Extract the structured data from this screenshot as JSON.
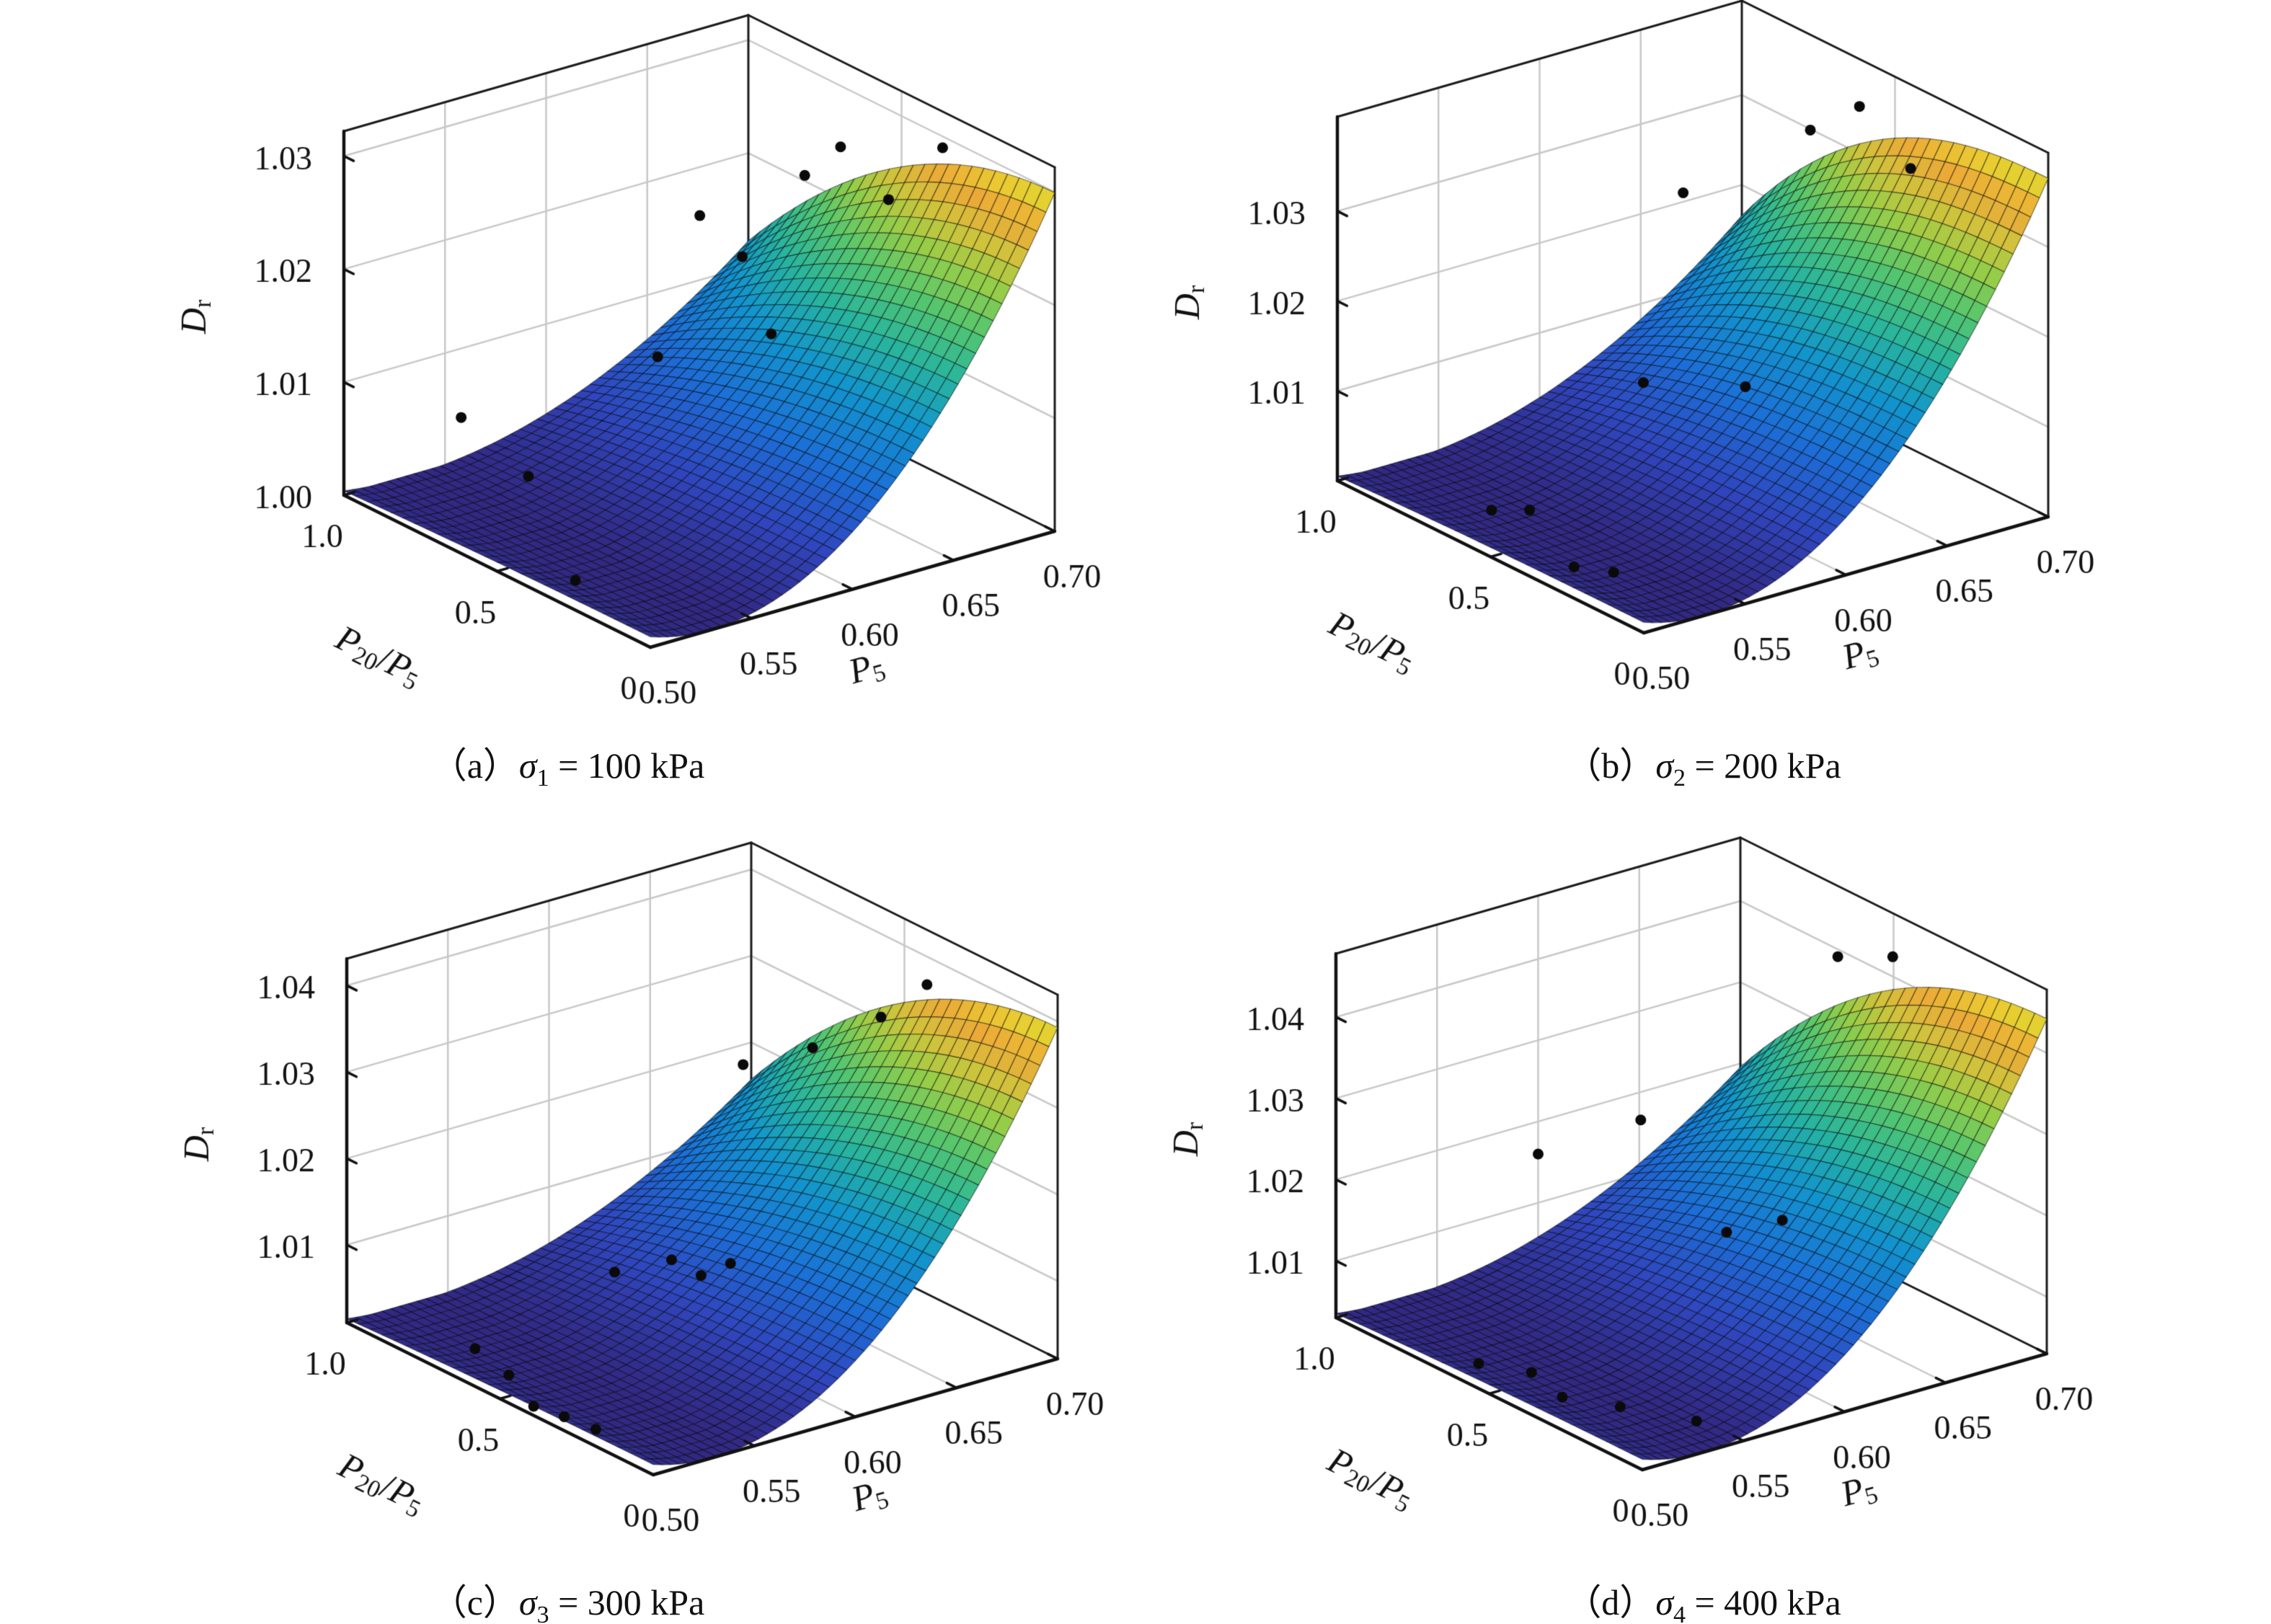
{
  "figure": {
    "background": "#ffffff",
    "text_color": "#111111",
    "grid_color": "#c8c8c8",
    "box_color": "#1a1a1a",
    "dot_color": "#0a0a0a"
  },
  "captions": [
    {
      "prefix": "（a）",
      "sym": "σ",
      "sub": "1",
      "rest": " = 100 kPa"
    },
    {
      "prefix": "（b）",
      "sym": "σ",
      "sub": "2",
      "rest": " = 200 kPa"
    },
    {
      "prefix": "（c）",
      "sym": "σ",
      "sub": "3",
      "rest": " = 300 kPa"
    },
    {
      "prefix": "（d）",
      "sym": "σ",
      "sub": "4",
      "rest": " = 400 kPa"
    }
  ],
  "chart_data": [
    {
      "type": "surface3d",
      "title": "（a）σ1 = 100 kPa",
      "xlabel_runs": [
        {
          "t": "P",
          "i": 1
        },
        {
          "t": "5",
          "sub": 1
        }
      ],
      "ylabel_runs": [
        {
          "t": "P",
          "i": 1
        },
        {
          "t": "20",
          "sub": 1
        },
        {
          "t": "/"
        },
        {
          "t": "P",
          "i": 1
        },
        {
          "t": "5",
          "sub": 1
        }
      ],
      "zlabel_runs": [
        {
          "t": "D",
          "i": 1
        },
        {
          "t": "r",
          "sub": 1
        }
      ],
      "x_range": [
        0.5,
        0.7
      ],
      "y_range": [
        0,
        1.0
      ],
      "x_ticks": [
        "0.50",
        "0.55",
        "0.60",
        "0.65",
        "0.70"
      ],
      "y_ticks": [
        "0",
        "0.5",
        "1.0"
      ],
      "z_ticks": [
        "1.00",
        "1.01",
        "1.02",
        "1.03"
      ],
      "z_tick_values": [
        1.0,
        1.01,
        1.02,
        1.03
      ],
      "z_axis": {
        "min": 1.0,
        "max": 1.0322
      },
      "surface_model": {
        "desc": "Dr = zmin + (zmax-zmin)*(p - q*v^pw)*((u-r)/(1-r))^2, u=(P5-0.5)/0.2, v=P20/P5",
        "r": 0.15,
        "p": 0.93,
        "q": 0.55,
        "pw": 2.0
      },
      "points": [
        [
          0.516,
          0.35,
          1.0
        ],
        [
          0.567,
          0.84,
          1.0
        ],
        [
          0.558,
          1.0,
          1.0039
        ],
        [
          0.64,
          0.9,
          1.0064
        ],
        [
          0.628,
          0.45,
          1.0151
        ],
        [
          0.676,
          1.0,
          1.0157
        ],
        [
          0.697,
          1.0,
          1.011
        ],
        [
          0.69,
          0.75,
          1.0219
        ],
        [
          0.685,
          0.6,
          1.0267
        ],
        [
          0.69,
          0.3,
          1.0304
        ],
        [
          0.686,
          0.45,
          1.024
        ]
      ]
    },
    {
      "type": "surface3d",
      "title": "（b）σ2 = 200 kPa",
      "xlabel_runs": [
        {
          "t": "P",
          "i": 1
        },
        {
          "t": "5",
          "sub": 1
        }
      ],
      "ylabel_runs": [
        {
          "t": "P",
          "i": 1
        },
        {
          "t": "20",
          "sub": 1
        },
        {
          "t": "/"
        },
        {
          "t": "P",
          "i": 1
        },
        {
          "t": "5",
          "sub": 1
        }
      ],
      "zlabel_runs": [
        {
          "t": "D",
          "i": 1
        },
        {
          "t": "r",
          "sub": 1
        }
      ],
      "x_range": [
        0.5,
        0.7
      ],
      "y_range": [
        0,
        1.0
      ],
      "x_ticks": [
        "0.50",
        "0.55",
        "0.60",
        "0.65",
        "0.70"
      ],
      "y_ticks": [
        "0",
        "0.5",
        "1.0"
      ],
      "z_ticks": [
        "1.01",
        "1.02",
        "1.03"
      ],
      "z_tick_values": [
        1.01,
        1.02,
        1.03
      ],
      "z_axis": {
        "min": 1.0,
        "max": 1.0405
      },
      "surface_model": {
        "desc": "Dr = zmin + (zmax-zmin)*(p - q*v^pw)*((u-r)/(1-r))^2, u=(P5-0.5)/0.2, v=P20/P5",
        "r": 0.15,
        "p": 0.93,
        "q": 0.52,
        "pw": 2.4
      },
      "points": [
        [
          0.527,
          0.675,
          1.0
        ],
        [
          0.539,
          0.63,
          1.0
        ],
        [
          0.517,
          0.34,
          1.0
        ],
        [
          0.526,
          0.27,
          1.0
        ],
        [
          0.621,
          0.8,
          1.0065
        ],
        [
          0.626,
          0.5,
          1.0108
        ],
        [
          0.671,
          1.0,
          1.021
        ],
        [
          0.696,
          0.75,
          1.0306
        ],
        [
          0.685,
          0.35,
          1.0338
        ],
        [
          0.69,
          0.55,
          1.037
        ]
      ]
    },
    {
      "type": "surface3d",
      "title": "（c）σ3 = 300 kPa",
      "xlabel_runs": [
        {
          "t": "P",
          "i": 1
        },
        {
          "t": "5",
          "sub": 1
        }
      ],
      "ylabel_runs": [
        {
          "t": "P",
          "i": 1
        },
        {
          "t": "20",
          "sub": 1
        },
        {
          "t": "/"
        },
        {
          "t": "P",
          "i": 1
        },
        {
          "t": "5",
          "sub": 1
        }
      ],
      "zlabel_runs": [
        {
          "t": "D",
          "i": 1
        },
        {
          "t": "r",
          "sub": 1
        }
      ],
      "x_range": [
        0.5,
        0.7
      ],
      "y_range": [
        0,
        1.0
      ],
      "x_ticks": [
        "0.50",
        "0.55",
        "0.60",
        "0.65",
        "0.70"
      ],
      "y_ticks": [
        "0",
        "0.5",
        "1.0"
      ],
      "z_ticks": [
        "1.01",
        "1.02",
        "1.03",
        "1.04"
      ],
      "z_tick_values": [
        1.01,
        1.02,
        1.03,
        1.04
      ],
      "z_axis": {
        "min": 1.001,
        "max": 1.0431
      },
      "surface_model": {
        "desc": "Dr = zmin + (zmax-zmin)*(p - q*v^pw)*((u-r)/(1-r))^2, u=(P5-0.5)/0.2, v=P20/P5",
        "r": 0.15,
        "p": 0.91,
        "q": 0.56,
        "pw": 2.0
      },
      "points": [
        [
          0.503,
          0.41,
          1.001
        ],
        [
          0.506,
          0.33,
          1.001
        ],
        [
          0.508,
          0.24,
          1.001
        ],
        [
          0.521,
          0.72,
          1.001
        ],
        [
          0.515,
          0.57,
          1.001
        ],
        [
          0.587,
          0.7,
          1.0063
        ],
        [
          0.6,
          0.6,
          1.0086
        ],
        [
          0.607,
          0.55,
          1.0072
        ],
        [
          0.614,
          0.5,
          1.009
        ],
        [
          0.696,
          1.0,
          1.0177
        ],
        [
          0.7,
          0.8,
          1.0229
        ],
        [
          0.696,
          0.55,
          1.0311
        ],
        [
          0.696,
          0.4,
          1.0375
        ]
      ]
    },
    {
      "type": "surface3d",
      "title": "（d）σ4 = 400 kPa",
      "xlabel_runs": [
        {
          "t": "P",
          "i": 1
        },
        {
          "t": "5",
          "sub": 1
        }
      ],
      "ylabel_runs": [
        {
          "t": "P",
          "i": 1
        },
        {
          "t": "20",
          "sub": 1
        },
        {
          "t": "/"
        },
        {
          "t": "P",
          "i": 1
        },
        {
          "t": "5",
          "sub": 1
        }
      ],
      "zlabel_runs": [
        {
          "t": "D",
          "i": 1
        },
        {
          "t": "r",
          "sub": 1
        }
      ],
      "x_range": [
        0.5,
        0.7
      ],
      "y_range": [
        0,
        1.0
      ],
      "x_ticks": [
        "0.50",
        "0.55",
        "0.60",
        "0.65",
        "0.70"
      ],
      "y_ticks": [
        "0",
        "0.5",
        "1.0"
      ],
      "z_ticks": [
        "1.01",
        "1.02",
        "1.03",
        "1.04"
      ],
      "z_tick_values": [
        1.01,
        1.02,
        1.03,
        1.04
      ],
      "z_axis": {
        "min": 1.003,
        "max": 1.0478
      },
      "surface_model": {
        "desc": "Dr = zmin + (zmax-zmin)*(p - q*v^pw)*((u-r)/(1-r))^2, u=(P5-0.5)/0.2, v=P20/P5",
        "r": 0.15,
        "p": 0.92,
        "q": 0.55,
        "pw": 2.1
      },
      "points": [
        [
          0.513,
          0.62,
          1.003
        ],
        [
          0.524,
          0.52,
          1.003
        ],
        [
          0.518,
          0.38,
          1.003
        ],
        [
          0.53,
          0.27,
          1.003
        ],
        [
          0.545,
          0.12,
          1.003
        ],
        [
          0.625,
          0.55,
          1.013
        ],
        [
          0.645,
          0.5,
          1.014
        ],
        [
          0.6,
          1.0,
          1.016
        ],
        [
          0.628,
          0.85,
          1.021
        ],
        [
          0.68,
          0.55,
          1.043
        ],
        [
          0.692,
          0.45,
          1.044
        ]
      ]
    }
  ],
  "colormap": [
    [
      0.0,
      50,
      40,
      130
    ],
    [
      0.12,
      48,
      70,
      190
    ],
    [
      0.25,
      28,
      110,
      215
    ],
    [
      0.4,
      18,
      148,
      205
    ],
    [
      0.52,
      40,
      180,
      158
    ],
    [
      0.64,
      85,
      198,
      110
    ],
    [
      0.74,
      150,
      205,
      72
    ],
    [
      0.82,
      208,
      195,
      60
    ],
    [
      0.9,
      235,
      170,
      56
    ],
    [
      0.96,
      235,
      200,
      50
    ],
    [
      1.0,
      215,
      225,
      48
    ]
  ]
}
